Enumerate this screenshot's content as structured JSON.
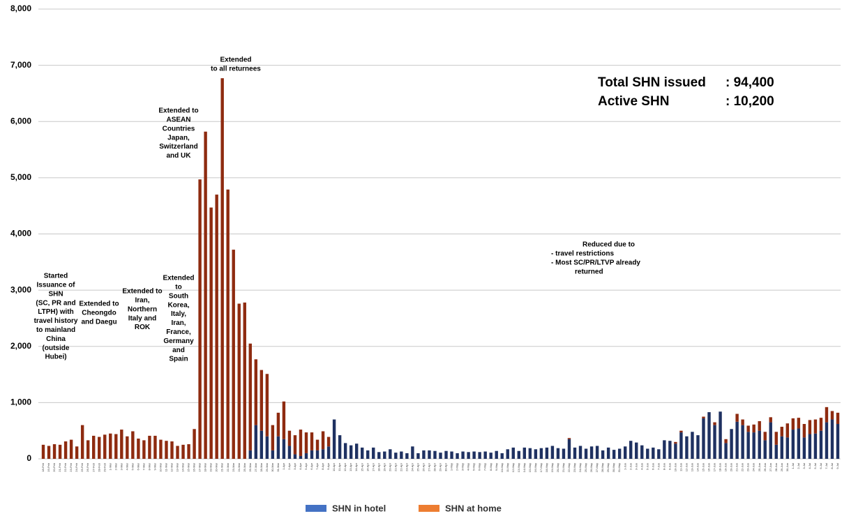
{
  "chart_data": {
    "type": "stacked_bar",
    "categories": [
      "18-Feb",
      "19-Feb",
      "20-Feb",
      "21-Feb",
      "22-Feb",
      "23-Feb",
      "24-Feb",
      "25-Feb",
      "26-Feb",
      "27-Feb",
      "28-Feb",
      "29-Feb",
      "1-Mar",
      "2-Mar",
      "3-Mar",
      "4-Mar",
      "5-Mar",
      "6-Mar",
      "7-Mar",
      "8-Mar",
      "9-Mar",
      "10-Mar",
      "11-Mar",
      "12-Mar",
      "13-Mar",
      "14-Mar",
      "15-Mar",
      "16-Mar",
      "17-Mar",
      "18-Mar",
      "19-Mar",
      "20-Mar",
      "21-Mar",
      "22-Mar",
      "23-Mar",
      "24-Mar",
      "25-Mar",
      "26-Mar",
      "27-Mar",
      "28-Mar",
      "29-Mar",
      "30-Mar",
      "31-Mar",
      "1-Apr",
      "2-Apr",
      "3-Apr",
      "4-Apr",
      "5-Apr",
      "6-Apr",
      "7-Apr",
      "8-Apr",
      "9-Apr",
      "10-Apr",
      "11-Apr",
      "12-Apr",
      "13-Apr",
      "14-Apr",
      "15-Apr",
      "16-Apr",
      "17-Apr",
      "18-Apr",
      "19-Apr",
      "20-Apr",
      "21-Apr",
      "22-Apr",
      "23-Apr",
      "24-Apr",
      "25-Apr",
      "26-Apr",
      "27-Apr",
      "28-Apr",
      "29-Apr",
      "30-Apr",
      "1-May",
      "2-May",
      "3-May",
      "4-May",
      "5-May",
      "6-May",
      "7-May",
      "8-May",
      "9-May",
      "10-May",
      "11-May",
      "12-May",
      "13-May",
      "14-May",
      "15-May",
      "16-May",
      "17-May",
      "18-May",
      "19-May",
      "20-May",
      "21-May",
      "22-May",
      "23-May",
      "24-May",
      "25-May",
      "26-May",
      "27-May",
      "28-May",
      "29-May",
      "30-May",
      "31-May",
      "1-Jun",
      "2-Jun",
      "3-Jun",
      "4-Jun",
      "5-Jun",
      "6-Jun",
      "7-Jun",
      "8-Jun",
      "9-Jun",
      "10-Jun",
      "11-Jun",
      "12-Jun",
      "13-Jun",
      "14-Jun",
      "15-Jun",
      "16-Jun",
      "17-Jun",
      "18-Jun",
      "19-Jun",
      "20-Jun",
      "21-Jun",
      "22-Jun",
      "23-Jun",
      "24-Jun",
      "25-Jun",
      "26-Jun",
      "27-Jun",
      "28-Jun",
      "29-Jun",
      "30-Jun",
      "1-Jul",
      "2-Jul",
      "3-Jul",
      "4-Jul",
      "5-Jul",
      "6-Jul",
      "7-Jul",
      "8-Jul",
      "9-Jul"
    ],
    "series": [
      {
        "name": "SHN in hotel",
        "color": "#4472c4",
        "bar_color": "#1f3161",
        "values": [
          0,
          0,
          0,
          0,
          0,
          0,
          0,
          0,
          0,
          0,
          0,
          0,
          0,
          0,
          0,
          0,
          0,
          0,
          0,
          0,
          0,
          0,
          0,
          0,
          0,
          0,
          0,
          0,
          0,
          0,
          0,
          0,
          0,
          0,
          0,
          0,
          0,
          150,
          600,
          500,
          400,
          150,
          400,
          350,
          230,
          80,
          50,
          100,
          150,
          150,
          170,
          220,
          700,
          420,
          280,
          240,
          270,
          200,
          150,
          200,
          120,
          130,
          170,
          110,
          130,
          100,
          220,
          100,
          150,
          150,
          140,
          110,
          140,
          130,
          100,
          130,
          120,
          130,
          120,
          130,
          110,
          140,
          100,
          170,
          200,
          140,
          200,
          190,
          170,
          190,
          200,
          230,
          190,
          180,
          350,
          200,
          230,
          180,
          220,
          230,
          150,
          200,
          160,
          180,
          220,
          320,
          290,
          240,
          180,
          200,
          170,
          330,
          320,
          270,
          470,
          400,
          480,
          420,
          720,
          830,
          600,
          840,
          280,
          530,
          660,
          600,
          480,
          470,
          500,
          330,
          650,
          250,
          400,
          380,
          520,
          540,
          380,
          440,
          450,
          500,
          650,
          700,
          620
        ]
      },
      {
        "name": "SHN at home",
        "color": "#ed7d31",
        "bar_color": "#8e2b10",
        "values": [
          250,
          230,
          260,
          250,
          310,
          340,
          220,
          600,
          330,
          410,
          390,
          430,
          450,
          440,
          520,
          400,
          490,
          360,
          330,
          410,
          410,
          340,
          320,
          310,
          230,
          250,
          260,
          530,
          4970,
          5820,
          4470,
          4700,
          6770,
          4790,
          3720,
          2760,
          2780,
          1900,
          1170,
          1080,
          1110,
          450,
          420,
          670,
          270,
          340,
          470,
          370,
          320,
          190,
          320,
          170,
          0,
          0,
          0,
          0,
          0,
          0,
          0,
          0,
          0,
          0,
          0,
          0,
          0,
          0,
          0,
          0,
          0,
          0,
          0,
          0,
          0,
          0,
          0,
          0,
          0,
          0,
          0,
          0,
          0,
          0,
          0,
          0,
          0,
          0,
          0,
          0,
          0,
          0,
          0,
          0,
          0,
          0,
          20,
          0,
          0,
          0,
          0,
          0,
          0,
          0,
          0,
          0,
          0,
          0,
          0,
          0,
          0,
          0,
          0,
          0,
          0,
          30,
          30,
          0,
          0,
          0,
          30,
          0,
          50,
          0,
          70,
          0,
          140,
          100,
          110,
          140,
          170,
          150,
          90,
          230,
          170,
          250,
          200,
          190,
          240,
          250,
          250,
          230,
          270,
          150,
          200
        ]
      }
    ],
    "ylim": [
      0,
      8000
    ],
    "yticks": [
      0,
      {
        "value": 1000,
        "label": "1,000"
      },
      {
        "value": 2000,
        "label": "2,000"
      },
      {
        "value": 3000,
        "label": "3,000"
      },
      {
        "value": 4000,
        "label": "4,000"
      },
      {
        "value": 5000,
        "label": "5,000"
      },
      {
        "value": 6000,
        "label": "6,000"
      },
      {
        "value": 7000,
        "label": "7,000"
      },
      {
        "value": 8000,
        "label": "8,000"
      }
    ],
    "grid": true,
    "summary": [
      {
        "label": "Total SHN issued",
        "value": ": 94,400"
      },
      {
        "label": "Active SHN",
        "value": ": 10,200"
      }
    ],
    "annotations": [
      {
        "lines": [
          "Started",
          "Issuance of",
          "SHN",
          "(SC, PR and",
          "LTPH) with",
          "travel history",
          "to mainland",
          "China",
          "(outside",
          "Hubei)"
        ]
      },
      {
        "lines": [
          "Extended to",
          "Cheongdo",
          "and Daegu"
        ]
      },
      {
        "lines": [
          "Extended to",
          "Iran,",
          "Northern",
          "Italy and",
          "ROK"
        ]
      },
      {
        "lines": [
          "Extended",
          "to",
          "South",
          "Korea,",
          "Italy,",
          "Iran,",
          "France,",
          "Germany",
          "and",
          "Spain"
        ]
      },
      {
        "lines": [
          "Extended to",
          "ASEAN",
          "Countries",
          "Japan,",
          "Switzerland",
          "and UK"
        ]
      },
      {
        "lines": [
          "Extended",
          "to all returnees"
        ]
      },
      {
        "lines": [
          "Reduced due to",
          "-       travel restrictions",
          "-       Most SC/PR/LTVP already",
          "returned"
        ]
      }
    ]
  }
}
